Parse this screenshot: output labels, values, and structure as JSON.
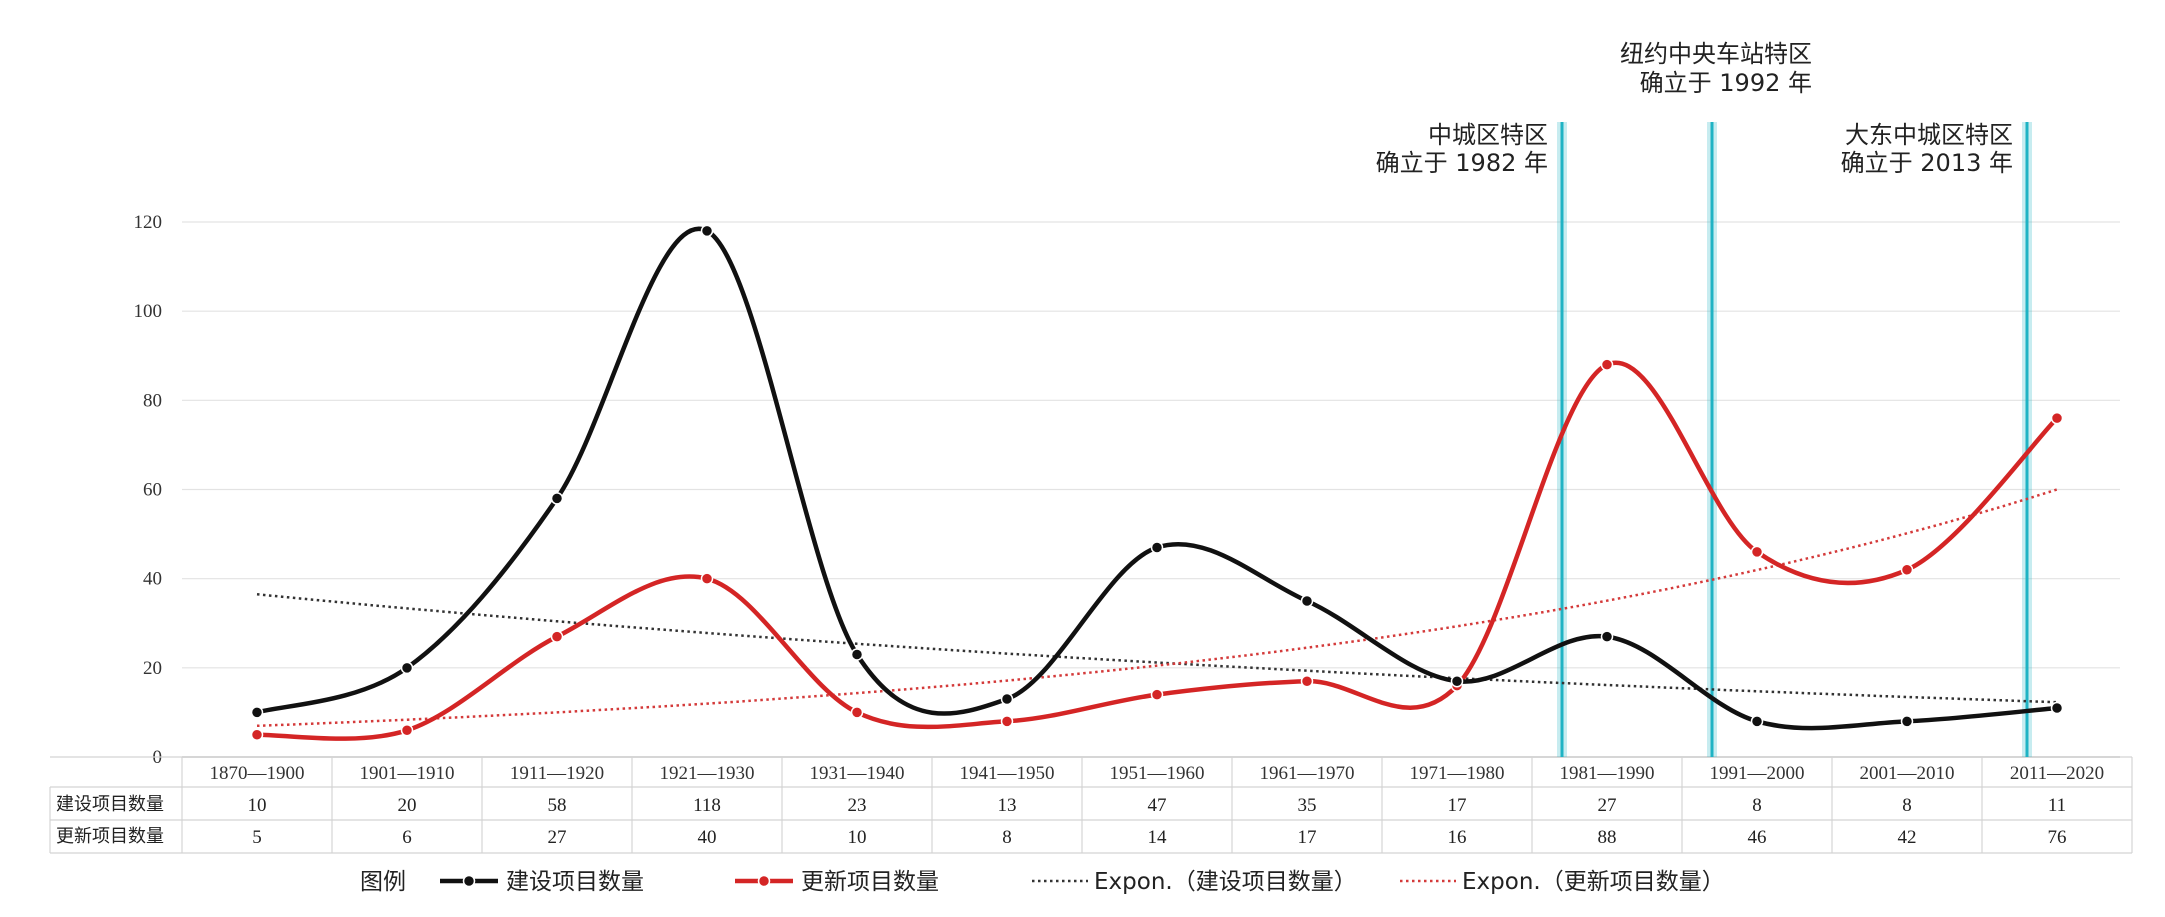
{
  "chart_data": {
    "type": "line",
    "categories": [
      "1870—1900",
      "1901—1910",
      "1911—1920",
      "1921—1930",
      "1931—1940",
      "1941—1950",
      "1951—1960",
      "1961—1970",
      "1971—1980",
      "1981—1990",
      "1991—2000",
      "2001—2010",
      "2011—2020"
    ],
    "series": [
      {
        "name": "建设项目数量",
        "values": [
          10,
          20,
          58,
          118,
          23,
          13,
          47,
          35,
          17,
          27,
          8,
          8,
          11
        ],
        "color": "#111111"
      },
      {
        "name": "更新项目数量",
        "values": [
          5,
          6,
          27,
          40,
          10,
          8,
          14,
          17,
          16,
          88,
          46,
          42,
          76
        ],
        "color": "#d42525"
      }
    ],
    "trendlines": [
      {
        "name": "Expon.（建设项目数量）",
        "start": 36.5,
        "end": 12.3,
        "color": "#333333"
      },
      {
        "name": "Expon.（更新项目数量）",
        "start": 7,
        "end": 60,
        "color": "#d43a3a"
      }
    ],
    "yticks": [
      "0",
      "20",
      "40",
      "60",
      "80",
      "100",
      "120"
    ],
    "ylim": [
      0,
      120
    ],
    "grid": true,
    "table_rows": [
      {
        "label": "建设项目数量",
        "values": [
          "10",
          "20",
          "58",
          "118",
          "23",
          "13",
          "47",
          "35",
          "17",
          "27",
          "8",
          "8",
          "11"
        ]
      },
      {
        "label": "更新项目数量",
        "values": [
          "5",
          "6",
          "27",
          "40",
          "10",
          "8",
          "14",
          "17",
          "16",
          "88",
          "46",
          "42",
          "76"
        ]
      }
    ],
    "annotations": [
      {
        "line1": "中城区特区",
        "line2": "确立于 1982 年",
        "x": 1982,
        "color": "#1fb3c4"
      },
      {
        "line1": "纽约中央车站特区",
        "line2": "确立于 1992 年",
        "x": 1992,
        "color": "#1fb3c4"
      },
      {
        "line1": "大东中城区特区",
        "line2": "确立于 2013 年",
        "x": 2013,
        "color": "#1fb3c4"
      }
    ],
    "legend": {
      "title": "图例",
      "position": "bottom"
    }
  }
}
